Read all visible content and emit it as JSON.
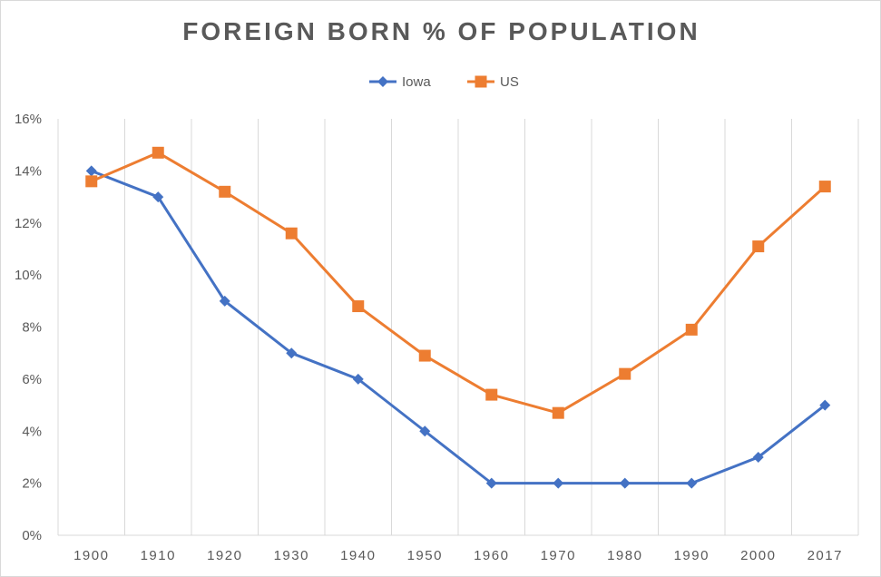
{
  "chart_data": {
    "type": "line",
    "title": "FOREIGN BORN % OF POPULATION",
    "categories": [
      "1900",
      "1910",
      "1920",
      "1930",
      "1940",
      "1950",
      "1960",
      "1970",
      "1980",
      "1990",
      "2000",
      "2017"
    ],
    "series": [
      {
        "name": "Iowa",
        "color": "#4472c4",
        "marker": "diamond",
        "values": [
          14,
          13,
          9,
          7,
          6,
          4,
          2,
          2,
          2,
          2,
          3,
          5
        ]
      },
      {
        "name": "US",
        "color": "#ed7d31",
        "marker": "square",
        "values": [
          13.6,
          14.7,
          13.2,
          11.6,
          8.8,
          6.9,
          5.4,
          4.7,
          6.2,
          7.9,
          11.1,
          13.4
        ]
      }
    ],
    "ylim": [
      0,
      16
    ],
    "yticks": [
      0,
      2,
      4,
      6,
      8,
      10,
      12,
      14,
      16
    ],
    "ytick_suffix": "%",
    "legend_position": "top-center",
    "grid": "vertical"
  }
}
